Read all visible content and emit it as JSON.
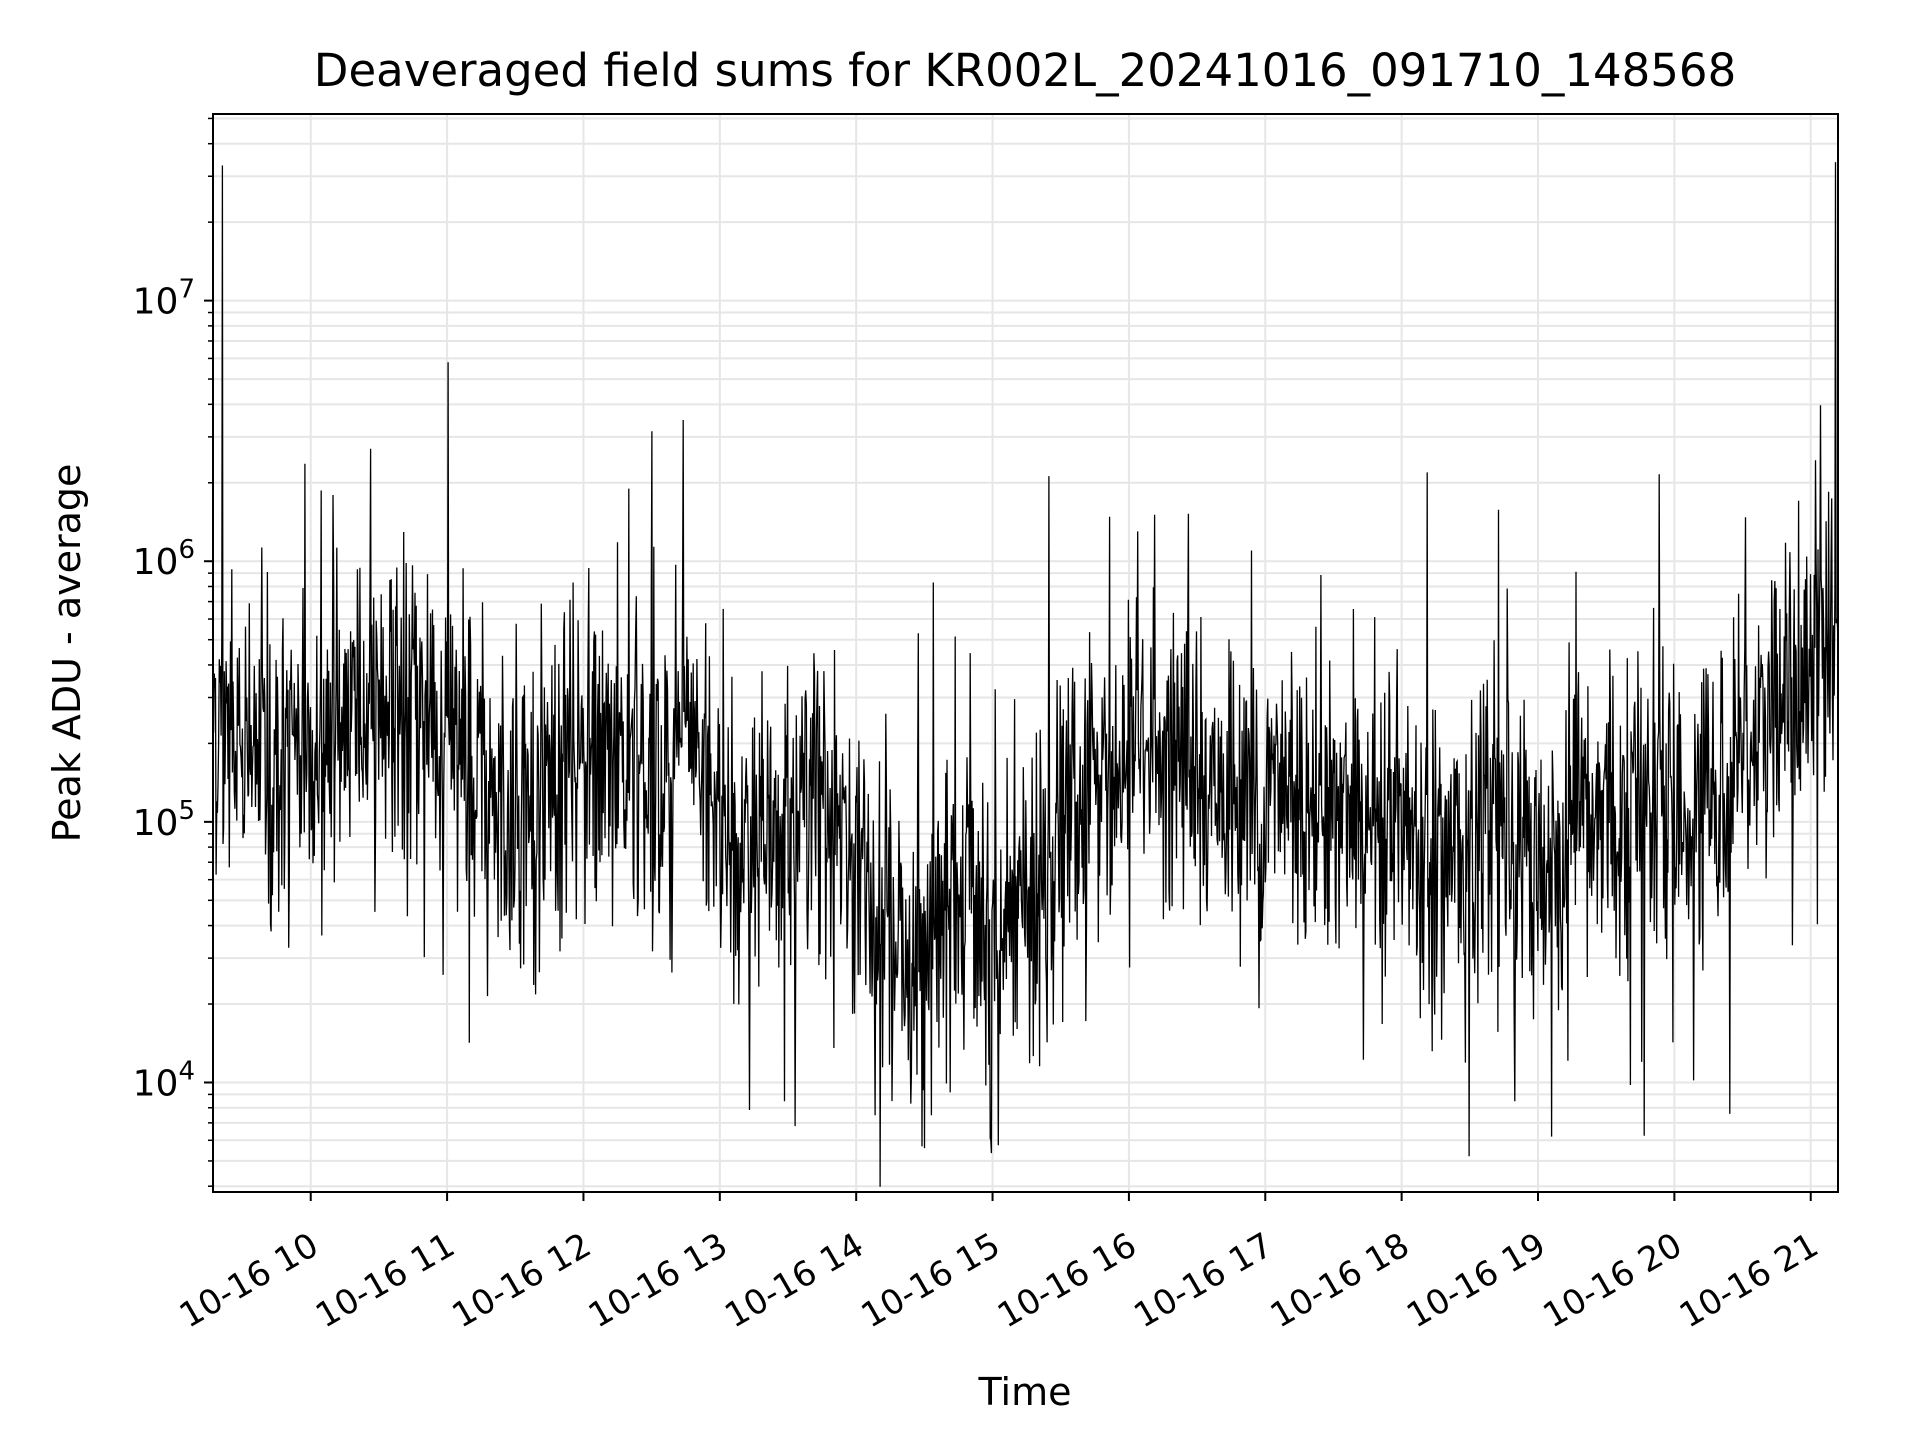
{
  "chart_data": {
    "type": "line",
    "title": "Deaveraged field sums for KR002L_20241016_091710_148568",
    "xlabel": "Time",
    "ylabel": "Peak ADU - average",
    "x_axis": {
      "kind": "datetime",
      "range": [
        "2024-10-16 09:17",
        "2024-10-16 21:12"
      ],
      "ticks": [
        "10-16 10",
        "10-16 11",
        "10-16 12",
        "10-16 13",
        "10-16 14",
        "10-16 15",
        "10-16 16",
        "10-16 17",
        "10-16 18",
        "10-16 19",
        "10-16 20",
        "10-16 21"
      ],
      "tick_rotation_deg": 30
    },
    "y_axis": {
      "scale": "log",
      "range": [
        3800,
        52000000
      ],
      "tick_values": [
        10000,
        100000,
        1000000,
        10000000
      ],
      "tick_labels": [
        {
          "base": "10",
          "exp": "4"
        },
        {
          "base": "10",
          "exp": "5"
        },
        {
          "base": "10",
          "exp": "6"
        },
        {
          "base": "10",
          "exp": "7"
        }
      ]
    },
    "grid": true,
    "line_color": "#000000",
    "grid_color": "#e6e6e6",
    "series": [
      {
        "name": "",
        "x": [
          "09:17",
          "09:20",
          "09:25",
          "09:32",
          "09:40",
          "09:50",
          "10:00",
          "10:10",
          "10:20",
          "10:30",
          "10:40",
          "10:50",
          "11:00",
          "11:10",
          "11:20",
          "11:30",
          "11:40",
          "11:50",
          "12:00",
          "12:10",
          "12:20",
          "12:30",
          "12:40",
          "12:50",
          "13:00",
          "13:10",
          "13:20",
          "13:30",
          "13:40",
          "13:50",
          "14:00",
          "14:10",
          "14:20",
          "14:30",
          "14:40",
          "14:50",
          "15:00",
          "15:10",
          "15:20",
          "15:30",
          "15:40",
          "15:50",
          "16:00",
          "16:10",
          "16:20",
          "16:30",
          "16:40",
          "16:50",
          "17:00",
          "17:10",
          "17:20",
          "17:30",
          "17:40",
          "17:50",
          "18:00",
          "18:10",
          "18:20",
          "18:30",
          "18:40",
          "18:50",
          "19:00",
          "19:10",
          "19:20",
          "19:30",
          "19:40",
          "19:50",
          "20:00",
          "20:10",
          "20:20",
          "20:30",
          "20:40",
          "20:50",
          "21:00",
          "21:05",
          "21:10",
          "21:12"
        ],
        "center": [
          300000,
          220000,
          200000,
          190000,
          180000,
          160000,
          170000,
          230000,
          280000,
          300000,
          260000,
          240000,
          230000,
          140000,
          120000,
          110000,
          130000,
          150000,
          160000,
          170000,
          180000,
          160000,
          190000,
          170000,
          100000,
          70000,
          80000,
          90000,
          150000,
          120000,
          70000,
          50000,
          30000,
          25000,
          40000,
          80000,
          30000,
          40000,
          60000,
          90000,
          110000,
          130000,
          160000,
          190000,
          200000,
          160000,
          130000,
          110000,
          120000,
          140000,
          130000,
          120000,
          110000,
          110000,
          100000,
          90000,
          70000,
          80000,
          100000,
          90000,
          70000,
          80000,
          100000,
          110000,
          120000,
          130000,
          110000,
          100000,
          130000,
          250000,
          240000,
          250000,
          400000,
          500000,
          520000,
          550000
        ],
        "spikes": [
          {
            "x": "09:21",
            "y": 33000000
          },
          {
            "x": "12:20",
            "y": 1900000
          },
          {
            "x": "13:33",
            "y": 6800
          },
          {
            "x": "14:30",
            "y": 5600
          },
          {
            "x": "14:59",
            "y": 6100
          },
          {
            "x": "19:06",
            "y": 6200
          },
          {
            "x": "21:11",
            "y": 34000000
          }
        ]
      }
    ]
  }
}
